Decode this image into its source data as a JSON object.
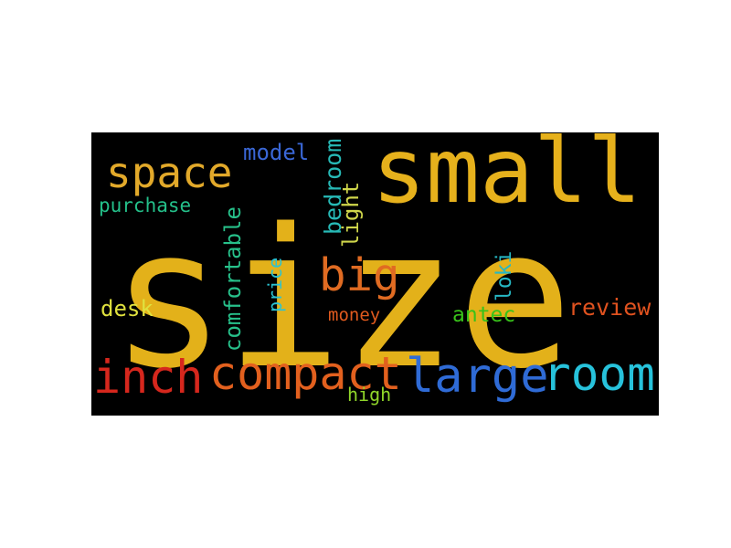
{
  "words": [
    {
      "text": "size",
      "color": "#e3b11a"
    },
    {
      "text": "small",
      "color": "#e6b11c"
    },
    {
      "text": "space",
      "color": "#e2a92a"
    },
    {
      "text": "model",
      "color": "#3a67d6"
    },
    {
      "text": "bedroom",
      "color": "#27b9b6"
    },
    {
      "text": "light",
      "color": "#cfd64b"
    },
    {
      "text": "comfortable",
      "color": "#27c08a"
    },
    {
      "text": "purchase",
      "color": "#24c08a"
    },
    {
      "text": "big",
      "color": "#e06b22"
    },
    {
      "text": "price",
      "color": "#2bc3d2"
    },
    {
      "text": "loki",
      "color": "#26b8c4"
    },
    {
      "text": "desk",
      "color": "#dfe13e"
    },
    {
      "text": "money",
      "color": "#e05a1e"
    },
    {
      "text": "antec",
      "color": "#38c21a"
    },
    {
      "text": "review",
      "color": "#e0521f"
    },
    {
      "text": "inch",
      "color": "#d6271d"
    },
    {
      "text": "compact",
      "color": "#e2601e"
    },
    {
      "text": "large",
      "color": "#2f6bd6"
    },
    {
      "text": "room",
      "color": "#27c2db"
    },
    {
      "text": "high",
      "color": "#90d62a"
    }
  ]
}
